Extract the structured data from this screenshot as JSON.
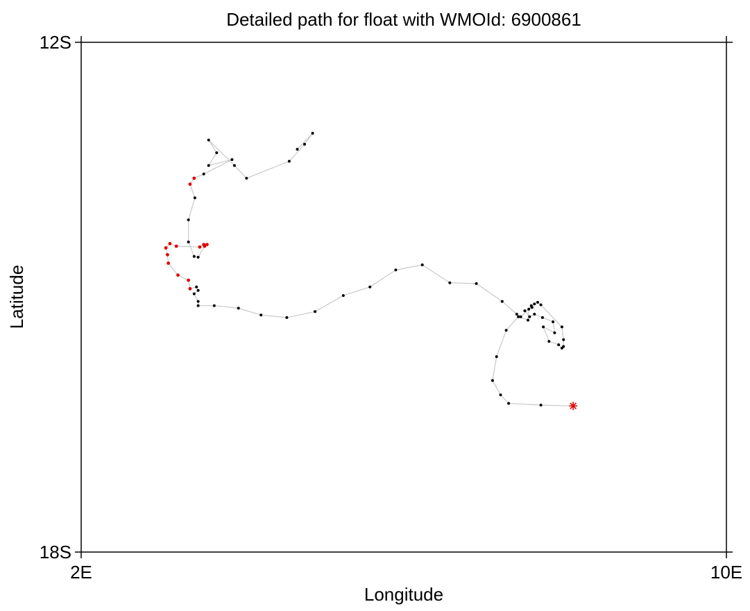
{
  "chart_data": {
    "type": "scatter",
    "title": "Detailed path for float with WMOId: 6900861",
    "xlabel": "Longitude",
    "ylabel": "Latitude",
    "xlim": [
      2,
      10
    ],
    "ylim": [
      -18,
      -12
    ],
    "x_ticks": [
      {
        "value": 2,
        "label": "2E"
      },
      {
        "value": 10,
        "label": "10E"
      }
    ],
    "y_ticks": [
      {
        "value": -12,
        "label": "12S"
      },
      {
        "value": -18,
        "label": "18S"
      }
    ],
    "grid": false,
    "legend": "none",
    "colors": {
      "path_line": "#c8c8c8",
      "point": "#000000",
      "highlight_point": "#e00000",
      "start_marker": "#e00000",
      "axis": "#000000"
    },
    "series": [
      {
        "role": "path",
        "points": [
          [
            8.1,
            -16.28
          ],
          [
            7.7,
            -16.27
          ],
          [
            7.3,
            -16.25
          ],
          [
            7.2,
            -16.15
          ],
          [
            7.1,
            -15.98
          ],
          [
            7.15,
            -15.7
          ],
          [
            7.27,
            -15.39
          ],
          [
            7.42,
            -15.23
          ],
          [
            7.54,
            -15.27
          ],
          [
            7.55,
            -15.14
          ],
          [
            7.58,
            -15.1
          ],
          [
            7.59,
            -15.12
          ],
          [
            7.5,
            -15.16
          ],
          [
            7.56,
            -15.23
          ],
          [
            7.62,
            -15.2
          ],
          [
            7.72,
            -15.24
          ],
          [
            7.85,
            -15.29
          ],
          [
            7.87,
            -15.42
          ],
          [
            7.73,
            -15.35
          ],
          [
            7.8,
            -15.52
          ],
          [
            7.92,
            -15.56
          ],
          [
            7.96,
            -15.6
          ],
          [
            7.98,
            -15.58
          ],
          [
            7.98,
            -15.5
          ],
          [
            7.96,
            -15.35
          ],
          [
            7.7,
            -15.09
          ],
          [
            7.66,
            -15.06
          ],
          [
            7.62,
            -15.08
          ],
          [
            7.45,
            -15.23
          ],
          [
            7.4,
            -15.2
          ],
          [
            7.22,
            -15.05
          ],
          [
            6.9,
            -14.84
          ],
          [
            6.57,
            -14.83
          ],
          [
            6.23,
            -14.62
          ],
          [
            5.9,
            -14.68
          ],
          [
            5.58,
            -14.88
          ],
          [
            5.25,
            -14.98
          ],
          [
            4.9,
            -15.17
          ],
          [
            4.55,
            -15.24
          ],
          [
            4.23,
            -15.21
          ],
          [
            3.95,
            -15.13
          ],
          [
            3.65,
            -15.1
          ],
          [
            3.45,
            -15.1
          ],
          [
            3.45,
            -15.05
          ],
          [
            3.4,
            -14.96
          ],
          [
            3.45,
            -14.92
          ],
          [
            3.43,
            -14.88
          ],
          [
            3.35,
            -14.9
          ],
          [
            3.33,
            -14.8
          ],
          [
            3.2,
            -14.74
          ],
          [
            3.08,
            -14.6
          ],
          [
            3.07,
            -14.5
          ],
          [
            3.05,
            -14.42
          ],
          [
            3.1,
            -14.37
          ],
          [
            3.18,
            -14.4
          ],
          [
            3.47,
            -14.41
          ],
          [
            3.52,
            -14.38
          ],
          [
            3.56,
            -14.38
          ],
          [
            3.53,
            -14.4
          ],
          [
            3.45,
            -14.53
          ],
          [
            3.4,
            -14.52
          ],
          [
            3.33,
            -14.35
          ],
          [
            3.33,
            -14.09
          ],
          [
            3.41,
            -13.83
          ],
          [
            3.35,
            -13.67
          ],
          [
            3.4,
            -13.6
          ],
          [
            3.52,
            -13.55
          ],
          [
            3.87,
            -13.38
          ],
          [
            3.58,
            -13.45
          ],
          [
            3.68,
            -13.3
          ],
          [
            3.58,
            -13.15
          ],
          [
            3.9,
            -13.45
          ],
          [
            4.05,
            -13.6
          ],
          [
            4.58,
            -13.4
          ],
          [
            4.77,
            -13.2
          ],
          [
            4.87,
            -13.07
          ],
          [
            4.68,
            -13.26
          ]
        ]
      }
    ],
    "start_marker": {
      "x": 8.1,
      "y": -16.28,
      "symbol": "asterisk"
    }
  }
}
